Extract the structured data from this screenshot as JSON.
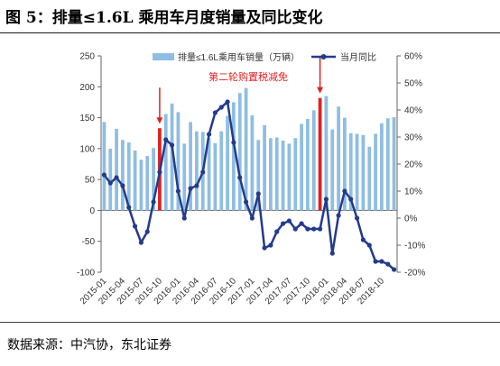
{
  "figure": {
    "title": "图 5：排量≤1.6L 乘用车月度销量及同比变化",
    "source": "数据来源：中汽协，东北证券"
  },
  "chart_data": {
    "type": "bar",
    "x_start": "2015-01",
    "x": [
      "2015-01",
      "2015-02",
      "2015-03",
      "2015-04",
      "2015-05",
      "2015-06",
      "2015-07",
      "2015-08",
      "2015-09",
      "2015-10",
      "2015-11",
      "2015-12",
      "2016-01",
      "2016-02",
      "2016-03",
      "2016-04",
      "2016-05",
      "2016-06",
      "2016-07",
      "2016-08",
      "2016-09",
      "2016-10",
      "2016-11",
      "2016-12",
      "2017-01",
      "2017-02",
      "2017-03",
      "2017-04",
      "2017-05",
      "2017-06",
      "2017-07",
      "2017-08",
      "2017-09",
      "2017-10",
      "2017-11",
      "2017-12",
      "2018-01",
      "2018-02",
      "2018-03",
      "2018-04",
      "2018-05",
      "2018-06",
      "2018-07",
      "2018-08",
      "2018-09",
      "2018-10",
      "2018-11",
      "2018-12"
    ],
    "x_tick_labels": [
      "2015-01",
      "2015-04",
      "2015-07",
      "2015-10",
      "2016-01",
      "2016-04",
      "2016-07",
      "2016-10",
      "2017-01",
      "2017-04",
      "2017-07",
      "2017-10",
      "2018-01",
      "2018-04",
      "2018-07",
      "2018-10"
    ],
    "series": [
      {
        "name": "排量≤1.6L乘用车销量（万辆）",
        "type": "bar",
        "axis": "left",
        "color": "#8fbde3",
        "values": [
          143,
          100,
          132,
          114,
          110,
          97,
          82,
          88,
          101,
          133,
          156,
          173,
          159,
          108,
          143,
          128,
          127,
          117,
          109,
          128,
          153,
          175,
          190,
          198,
          154,
          114,
          138,
          117,
          118,
          113,
          108,
          117,
          140,
          148,
          162,
          182,
          185,
          131,
          168,
          150,
          125,
          124,
          122,
          103,
          124,
          141,
          149,
          151
        ]
      },
      {
        "name": "当月同比",
        "type": "line",
        "axis": "right",
        "color": "#233b8c",
        "values": [
          16,
          13,
          15,
          12,
          4,
          -3,
          -9,
          -5,
          6,
          17,
          29,
          27,
          10,
          0,
          11,
          12,
          17,
          31,
          39,
          41,
          43,
          28,
          15,
          6,
          0,
          9,
          -11,
          -10,
          -5,
          -2,
          -1,
          -4,
          -2,
          -4,
          -4,
          -4,
          7,
          -13,
          1,
          10,
          7,
          0,
          -8,
          -10,
          -16,
          -16,
          -17,
          -19
        ]
      }
    ],
    "markers": [
      {
        "x": "2015-10",
        "color": "#e02020"
      },
      {
        "x": "2017-12",
        "color": "#e02020"
      }
    ],
    "annotation": "第二轮购置税减免",
    "y_left": {
      "ylim": [
        -100,
        250
      ],
      "ticks": [
        -100,
        -50,
        0,
        50,
        100,
        150,
        200,
        250
      ]
    },
    "y_right": {
      "ylim": [
        -20,
        60
      ],
      "ticks": [
        "-20%",
        "-10%",
        "0%",
        "10%",
        "20%",
        "30%",
        "40%",
        "50%",
        "60%"
      ]
    },
    "legend_position": "top-right",
    "grid": false
  }
}
